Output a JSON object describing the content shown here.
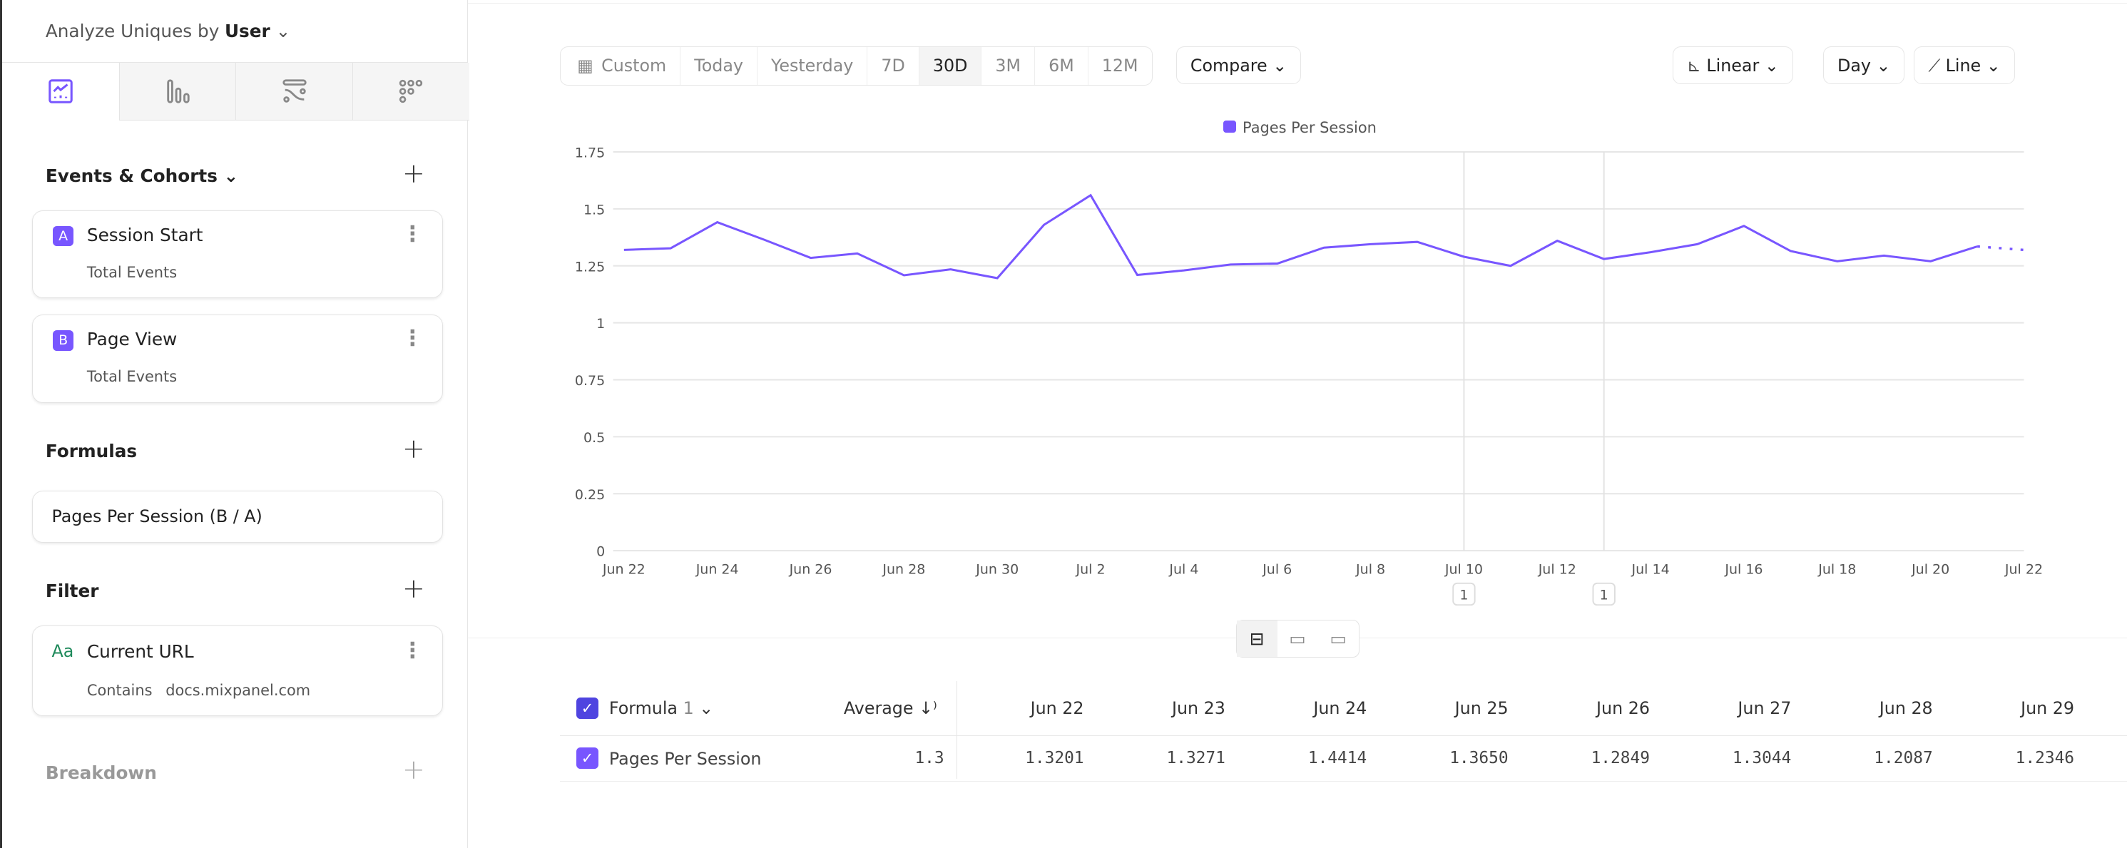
{
  "sidebar": {
    "analyze_label": "Analyze Uniques by",
    "analyze_value": "User",
    "tabs": [
      {
        "icon": "insights-line-icon",
        "active": true
      },
      {
        "icon": "funnels-bar-icon"
      },
      {
        "icon": "flows-icon"
      },
      {
        "icon": "retention-grid-icon"
      }
    ],
    "events_title": "Events & Cohorts",
    "events": [
      {
        "letter": "A",
        "name": "Session Start",
        "measure": "Total Events"
      },
      {
        "letter": "B",
        "name": "Page View",
        "measure": "Total Events"
      }
    ],
    "formulas_title": "Formulas",
    "formula": "Pages Per Session (B / A)",
    "filter_title": "Filter",
    "filter": {
      "type_icon": "Aa",
      "property": "Current URL",
      "operator": "Contains",
      "value": "docs.mixpanel.com"
    },
    "breakdown_title": "Breakdown"
  },
  "toolbar": {
    "date_ranges": [
      "Custom",
      "Today",
      "Yesterday",
      "7D",
      "30D",
      "3M",
      "6M",
      "12M"
    ],
    "selected_range": "30D",
    "compare": "Compare",
    "scale": "Linear",
    "interval": "Day",
    "chart_type": "Line"
  },
  "annotations": [
    {
      "date": "Jul 10",
      "count": "1"
    },
    {
      "date": "Jul 13",
      "count": "1"
    }
  ],
  "chart_data": {
    "type": "line",
    "series": [
      {
        "name": "Pages Per Session",
        "color": "#7856ff",
        "x": [
          "Jun 22",
          "Jun 23",
          "Jun 24",
          "Jun 25",
          "Jun 26",
          "Jun 27",
          "Jun 28",
          "Jun 29",
          "Jun 30",
          "Jul 1",
          "Jul 2",
          "Jul 3",
          "Jul 4",
          "Jul 5",
          "Jul 6",
          "Jul 7",
          "Jul 8",
          "Jul 9",
          "Jul 10",
          "Jul 11",
          "Jul 12",
          "Jul 13",
          "Jul 14",
          "Jul 15",
          "Jul 16",
          "Jul 17",
          "Jul 18",
          "Jul 19",
          "Jul 20",
          "Jul 21",
          "Jul 22"
        ],
        "values": [
          1.3201,
          1.3271,
          1.4414,
          1.365,
          1.2849,
          1.3044,
          1.2087,
          1.2346,
          1.196,
          1.43,
          1.56,
          1.21,
          1.23,
          1.256,
          1.26,
          1.33,
          1.345,
          1.355,
          1.29,
          1.25,
          1.36,
          1.28,
          1.31,
          1.345,
          1.425,
          1.315,
          1.27,
          1.295,
          1.27,
          1.335,
          1.32
        ],
        "partial_last_point": true
      }
    ],
    "yticks": [
      "0",
      "0.25",
      "0.5",
      "0.75",
      "1",
      "1.25",
      "1.5",
      "1.75"
    ],
    "ylim": [
      0,
      1.75
    ],
    "xticks": [
      "Jun 22",
      "Jun 24",
      "Jun 26",
      "Jun 28",
      "Jun 30",
      "Jul 2",
      "Jul 4",
      "Jul 6",
      "Jul 8",
      "Jul 10",
      "Jul 12",
      "Jul 14",
      "Jul 16",
      "Jul 18",
      "Jul 20",
      "Jul 22"
    ],
    "grid": true,
    "legend": "top-center"
  },
  "table": {
    "group_label": "Formula",
    "group_count": "1",
    "metric_header": "Average",
    "columns": [
      "Jun 22",
      "Jun 23",
      "Jun 24",
      "Jun 25",
      "Jun 26",
      "Jun 27",
      "Jun 28",
      "Jun 29"
    ],
    "rows": [
      {
        "name": "Pages Per Session",
        "average": "1.3",
        "values": [
          "1.3201",
          "1.3271",
          "1.4414",
          "1.3650",
          "1.2849",
          "1.3044",
          "1.2087",
          "1.2346"
        ]
      }
    ]
  }
}
